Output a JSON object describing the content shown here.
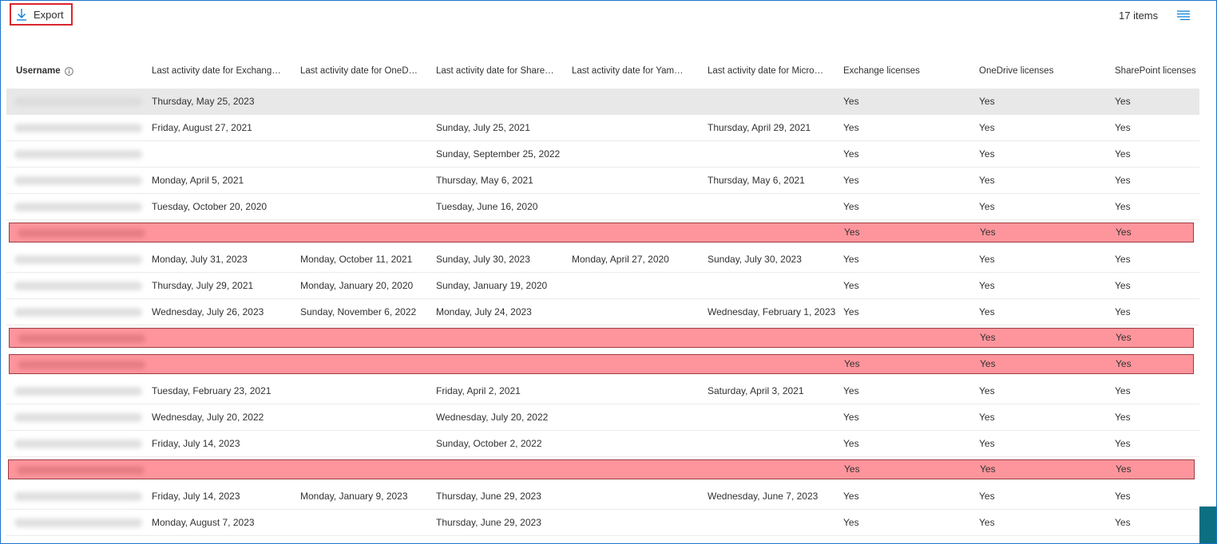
{
  "toolbar": {
    "export_label": "Export",
    "export_icon": "arrow-down-icon",
    "items_count": "17 items",
    "columns_icon": "column-options-icon"
  },
  "columns": [
    "Username",
    "Last activity date for Exchang…",
    "Last activity date for OneD…",
    "Last activity date for Share…",
    "Last activity date for Yam…",
    "Last activity date for Micro…",
    "Exchange licenses",
    "OneDrive licenses",
    "SharePoint licenses"
  ],
  "colors": {
    "selected_row": "#e8e8e8",
    "highlight_row": "#ff959c",
    "highlight_border": "#9e3a3f",
    "export_border": "#d9262c"
  },
  "rows": [
    {
      "state": "selected",
      "exchange_date": "Thursday, May 25, 2023",
      "onedrive_date": "",
      "sharepoint_date": "",
      "yammer_date": "",
      "teams_date": "",
      "exchange_license": "Yes",
      "onedrive_license": "Yes",
      "sharepoint_license": "Yes"
    },
    {
      "state": "normal",
      "exchange_date": "Friday, August 27, 2021",
      "onedrive_date": "",
      "sharepoint_date": "Sunday, July 25, 2021",
      "yammer_date": "",
      "teams_date": "Thursday, April 29, 2021",
      "exchange_license": "Yes",
      "onedrive_license": "Yes",
      "sharepoint_license": "Yes"
    },
    {
      "state": "normal",
      "exchange_date": "",
      "onedrive_date": "",
      "sharepoint_date": "Sunday, September 25, 2022",
      "yammer_date": "",
      "teams_date": "",
      "exchange_license": "Yes",
      "onedrive_license": "Yes",
      "sharepoint_license": "Yes"
    },
    {
      "state": "normal",
      "exchange_date": "Monday, April 5, 2021",
      "onedrive_date": "",
      "sharepoint_date": "Thursday, May 6, 2021",
      "yammer_date": "",
      "teams_date": "Thursday, May 6, 2021",
      "exchange_license": "Yes",
      "onedrive_license": "Yes",
      "sharepoint_license": "Yes"
    },
    {
      "state": "normal",
      "exchange_date": "Tuesday, October 20, 2020",
      "onedrive_date": "",
      "sharepoint_date": "Tuesday, June 16, 2020",
      "yammer_date": "",
      "teams_date": "",
      "exchange_license": "Yes",
      "onedrive_license": "Yes",
      "sharepoint_license": "Yes"
    },
    {
      "state": "highlight",
      "exchange_date": "",
      "onedrive_date": "",
      "sharepoint_date": "",
      "yammer_date": "",
      "teams_date": "",
      "exchange_license": "Yes",
      "onedrive_license": "Yes",
      "sharepoint_license": "Yes"
    },
    {
      "state": "normal",
      "exchange_date": "Monday, July 31, 2023",
      "onedrive_date": "Monday, October 11, 2021",
      "sharepoint_date": "Sunday, July 30, 2023",
      "yammer_date": "Monday, April 27, 2020",
      "teams_date": "Sunday, July 30, 2023",
      "exchange_license": "Yes",
      "onedrive_license": "Yes",
      "sharepoint_license": "Yes"
    },
    {
      "state": "normal",
      "exchange_date": "Thursday, July 29, 2021",
      "onedrive_date": "Monday, January 20, 2020",
      "sharepoint_date": "Sunday, January 19, 2020",
      "yammer_date": "",
      "teams_date": "",
      "exchange_license": "Yes",
      "onedrive_license": "Yes",
      "sharepoint_license": "Yes"
    },
    {
      "state": "normal",
      "exchange_date": "Wednesday, July 26, 2023",
      "onedrive_date": "Sunday, November 6, 2022",
      "sharepoint_date": "Monday, July 24, 2023",
      "yammer_date": "",
      "teams_date": "Wednesday, February 1, 2023",
      "exchange_license": "Yes",
      "onedrive_license": "Yes",
      "sharepoint_license": "Yes"
    },
    {
      "state": "highlight",
      "exchange_date": "",
      "onedrive_date": "",
      "sharepoint_date": "",
      "yammer_date": "",
      "teams_date": "",
      "exchange_license": "",
      "onedrive_license": "Yes",
      "sharepoint_license": "Yes"
    },
    {
      "state": "highlight",
      "exchange_date": "",
      "onedrive_date": "",
      "sharepoint_date": "",
      "yammer_date": "",
      "teams_date": "",
      "exchange_license": "Yes",
      "onedrive_license": "Yes",
      "sharepoint_license": "Yes"
    },
    {
      "state": "normal",
      "exchange_date": "Tuesday, February 23, 2021",
      "onedrive_date": "",
      "sharepoint_date": "Friday, April 2, 2021",
      "yammer_date": "",
      "teams_date": "Saturday, April 3, 2021",
      "exchange_license": "Yes",
      "onedrive_license": "Yes",
      "sharepoint_license": "Yes"
    },
    {
      "state": "normal",
      "exchange_date": "Wednesday, July 20, 2022",
      "onedrive_date": "",
      "sharepoint_date": "Wednesday, July 20, 2022",
      "yammer_date": "",
      "teams_date": "",
      "exchange_license": "Yes",
      "onedrive_license": "Yes",
      "sharepoint_license": "Yes"
    },
    {
      "state": "normal",
      "exchange_date": "Friday, July 14, 2023",
      "onedrive_date": "",
      "sharepoint_date": "Sunday, October 2, 2022",
      "yammer_date": "",
      "teams_date": "",
      "exchange_license": "Yes",
      "onedrive_license": "Yes",
      "sharepoint_license": "Yes"
    },
    {
      "state": "highlight",
      "exchange_date": "",
      "onedrive_date": "",
      "sharepoint_date": "",
      "yammer_date": "",
      "teams_date": "",
      "exchange_license": "Yes",
      "onedrive_license": "Yes",
      "sharepoint_license": "Yes"
    },
    {
      "state": "normal",
      "exchange_date": "Friday, July 14, 2023",
      "onedrive_date": "Monday, January 9, 2023",
      "sharepoint_date": "Thursday, June 29, 2023",
      "yammer_date": "",
      "teams_date": "Wednesday, June 7, 2023",
      "exchange_license": "Yes",
      "onedrive_license": "Yes",
      "sharepoint_license": "Yes"
    },
    {
      "state": "normal",
      "exchange_date": "Monday, August 7, 2023",
      "onedrive_date": "",
      "sharepoint_date": "Thursday, June 29, 2023",
      "yammer_date": "",
      "teams_date": "",
      "exchange_license": "Yes",
      "onedrive_license": "Yes",
      "sharepoint_license": "Yes"
    }
  ]
}
